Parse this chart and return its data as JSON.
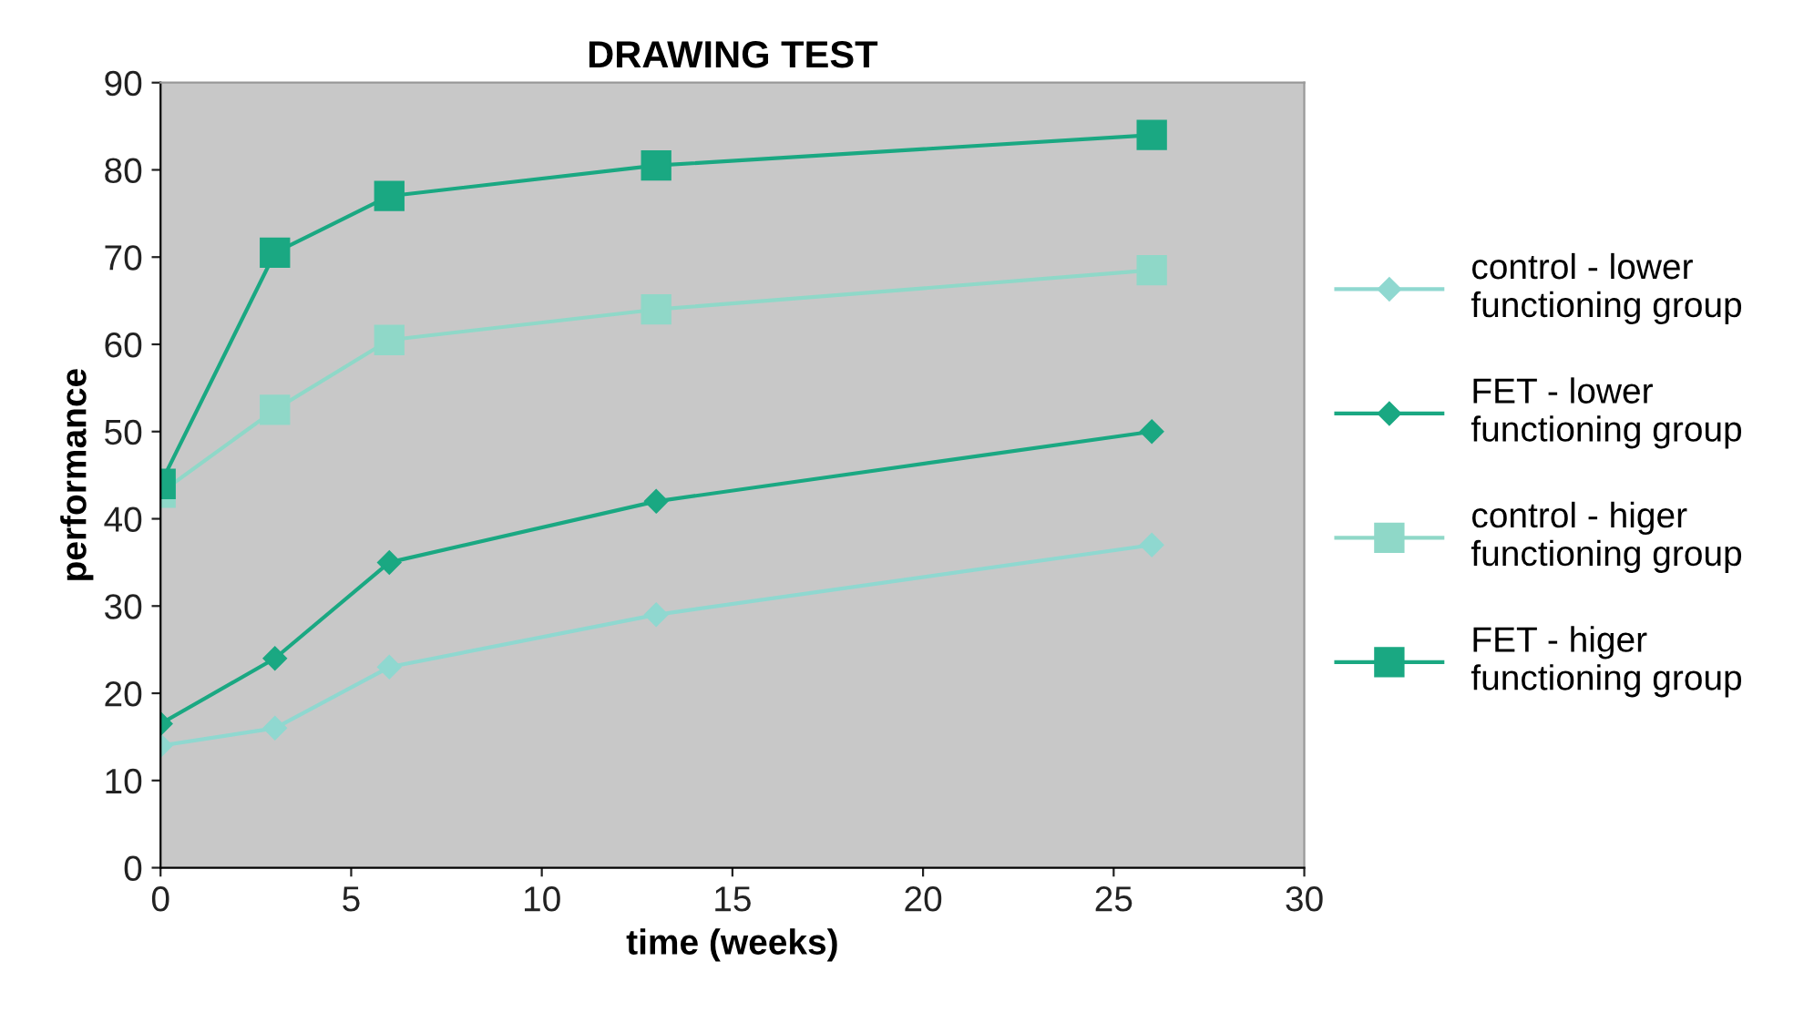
{
  "chart_data": {
    "type": "line",
    "title": "DRAWING TEST",
    "xlabel": "time (weeks)",
    "ylabel": "performance",
    "x": [
      0,
      3,
      6,
      13,
      26
    ],
    "series": [
      {
        "name": "control - lower\nfunctioning group",
        "color": "#8fd8d0",
        "marker": "diamond",
        "values": [
          14,
          16,
          23,
          29,
          37
        ]
      },
      {
        "name": "FET - lower\nfunctioning group",
        "color": "#1aa882",
        "marker": "diamond",
        "values": [
          16.5,
          24,
          35,
          42,
          50
        ]
      },
      {
        "name": "control - higer\nfunctioning group",
        "color": "#8fd8c8",
        "marker": "square",
        "values": [
          43,
          52.5,
          60.5,
          64,
          68.5
        ]
      },
      {
        "name": "FET - higer\nfunctioning group",
        "color": "#1aa882",
        "marker": "square",
        "values": [
          44,
          70.5,
          77,
          80.5,
          84
        ]
      }
    ],
    "xlim": [
      0,
      30
    ],
    "xticks": [
      0,
      5,
      10,
      15,
      20,
      25,
      30
    ],
    "ylim": [
      0,
      90
    ],
    "yticks": [
      0,
      10,
      20,
      30,
      40,
      50,
      60,
      70,
      80,
      90
    ],
    "grid": false,
    "legend": "right"
  }
}
